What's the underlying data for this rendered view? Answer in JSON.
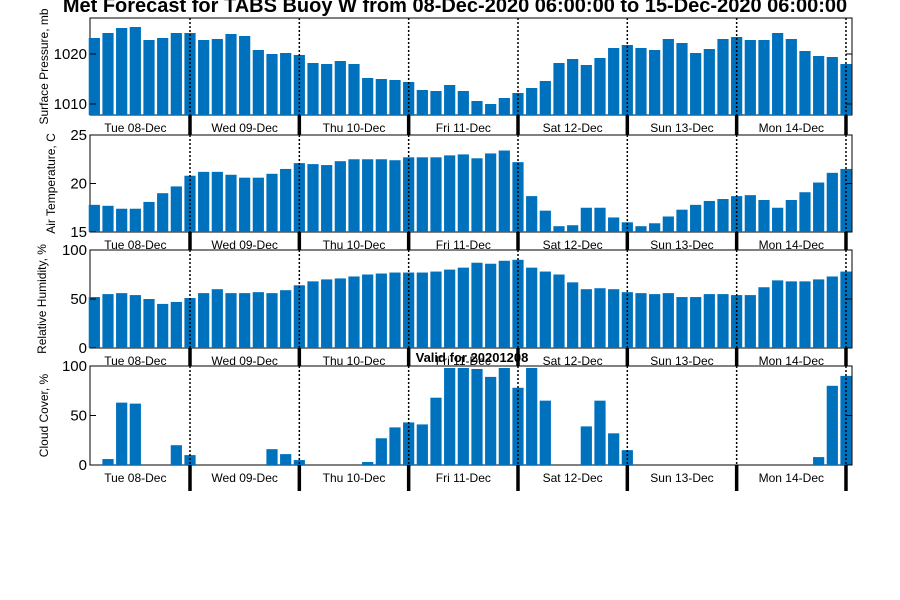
{
  "chart_data": [
    {
      "type": "bar",
      "title": "Met Forecast for TABS Buoy W from 08-Dec-2020 06:00:00 to 15-Dec-2020 06:00:00",
      "ylabel": "Surface Pressure, mb",
      "color": "#0072BD",
      "xtick_labels": [
        "Tue 08-Dec",
        "Wed 09-Dec",
        "Thu 10-Dec",
        "Fri 11-Dec",
        "Sat 12-Dec",
        "Sun 13-Dec",
        "Mon 14-Dec"
      ],
      "ylim": [
        1007.8,
        1027.2
      ],
      "yticks": [
        1010,
        1020
      ],
      "values": [
        1023.2,
        1024.2,
        1025.2,
        1025.4,
        1022.8,
        1023.2,
        1024.2,
        1024.2,
        1022.8,
        1023,
        1024,
        1023.6,
        1020.8,
        1020,
        1020.2,
        1019.8,
        1018.2,
        1018,
        1018.6,
        1018,
        1015.2,
        1015,
        1014.8,
        1014.4,
        1012.8,
        1012.6,
        1013.8,
        1012.6,
        1010.6,
        1010,
        1011.2,
        1012.2,
        1013.2,
        1014.6,
        1018.2,
        1019,
        1017.8,
        1019.2,
        1021.2,
        1021.8,
        1021.2,
        1020.8,
        1023,
        1022.2,
        1020.2,
        1021,
        1023,
        1023.4,
        1022.8,
        1022.8,
        1024.2,
        1023,
        1020.6,
        1019.6,
        1019.4,
        1018
      ]
    },
    {
      "type": "bar",
      "ylabel": "Air Temperature, C",
      "color": "#0072BD",
      "xtick_labels": [
        "Tue 08-Dec",
        "Wed 09-Dec",
        "Thu 10-Dec",
        "Fri 11-Dec",
        "Sat 12-Dec",
        "Sun 13-Dec",
        "Mon 14-Dec"
      ],
      "ylim": [
        15,
        25
      ],
      "yticks": [
        15,
        20,
        25
      ],
      "values": [
        17.8,
        17.7,
        17.4,
        17.4,
        18.1,
        19,
        19.7,
        20.8,
        21.2,
        21.2,
        20.9,
        20.6,
        20.6,
        21,
        21.5,
        22.1,
        22,
        21.9,
        22.3,
        22.5,
        22.5,
        22.5,
        22.4,
        22.7,
        22.7,
        22.7,
        22.9,
        23,
        22.6,
        23.1,
        23.4,
        22.2,
        18.7,
        17.2,
        15.6,
        15.7,
        17.5,
        17.5,
        16.5,
        16,
        15.6,
        15.9,
        16.6,
        17.3,
        17.8,
        18.2,
        18.4,
        18.7,
        18.8,
        18.3,
        17.5,
        18.3,
        19.1,
        20.1,
        21.1,
        21.5
      ]
    },
    {
      "type": "bar",
      "ylabel": "Relative Humidity, %",
      "color": "#0072BD",
      "xtick_labels": [
        "Tue 08-Dec",
        "Wed 09-Dec",
        "Thu 10-Dec",
        "Fri 11-Dec",
        "Sat 12-Dec",
        "Sun 13-Dec",
        "Mon 14-Dec"
      ],
      "ylim": [
        0,
        100
      ],
      "yticks": [
        0,
        50,
        100
      ],
      "values": [
        52,
        55,
        56,
        54,
        50,
        45,
        47,
        51,
        56,
        60,
        56,
        56,
        57,
        56,
        59,
        64,
        68,
        70,
        71,
        73,
        75,
        76,
        77,
        77,
        77,
        78,
        80,
        82,
        87,
        86,
        89,
        90,
        82,
        78,
        75,
        67,
        60,
        61,
        60,
        57,
        56,
        55,
        56,
        52,
        52,
        55,
        55,
        54,
        54,
        62,
        69,
        68,
        68,
        70,
        73,
        78
      ]
    },
    {
      "type": "bar",
      "title": "Valid for 20201208",
      "ylabel": "Cloud Cover, %",
      "color": "#0072BD",
      "xtick_labels": [
        "Tue 08-Dec",
        "Wed 09-Dec",
        "Thu 10-Dec",
        "Fri 11-Dec",
        "Sat 12-Dec",
        "Sun 13-Dec",
        "Mon 14-Dec"
      ],
      "ylim": [
        0,
        100
      ],
      "yticks": [
        0,
        50,
        100
      ],
      "values": [
        0,
        6,
        63,
        62,
        0,
        0,
        20,
        10,
        0,
        0,
        0,
        0,
        0,
        16,
        11,
        5,
        0,
        0,
        0,
        0,
        3,
        27,
        38,
        43,
        41,
        68,
        98,
        98,
        97,
        89,
        98,
        78,
        98,
        65,
        0,
        0,
        39,
        65,
        32,
        15,
        0,
        0,
        0,
        0,
        0,
        0,
        0,
        0,
        0,
        0,
        0,
        0,
        0,
        8,
        80,
        90
      ]
    }
  ]
}
